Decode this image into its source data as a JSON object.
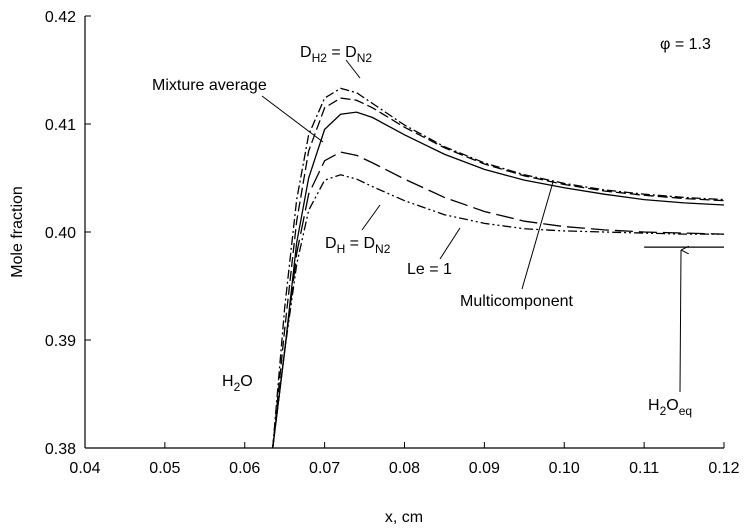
{
  "chart_data": {
    "type": "line",
    "xlabel": "x, cm",
    "ylabel": "Mole fraction",
    "xlim": [
      0.04,
      0.12
    ],
    "ylim": [
      0.38,
      0.42
    ],
    "xticks": [
      0.04,
      0.05,
      0.06,
      0.07,
      0.08,
      0.09,
      {
        "value": 0.1,
        "label": "0.10"
      },
      0.11,
      0.12
    ],
    "yticks": [
      0.38,
      0.39,
      {
        "value": 0.4,
        "label": "0.40"
      },
      0.41,
      0.42
    ],
    "x": [
      0.0635,
      0.065,
      0.0665,
      0.068,
      0.07,
      0.072,
      0.074,
      0.076,
      0.08,
      0.085,
      0.09,
      0.095,
      0.1,
      0.105,
      0.11,
      0.115,
      0.12
    ],
    "series": [
      {
        "color": "#000000",
        "dash": "solid",
        "values": [
          0.38,
          0.389,
          0.399,
          0.405,
          0.4095,
          0.4109,
          0.4111,
          0.4106,
          0.409,
          0.4072,
          0.4058,
          0.4048,
          0.4041,
          0.4035,
          0.403,
          0.4027,
          0.4025
        ]
      },
      {
        "color": "#000000",
        "dash": "dashed",
        "values": [
          0.38,
          0.391,
          0.401,
          0.4075,
          0.4115,
          0.4124,
          0.4122,
          0.4115,
          0.4097,
          0.4078,
          0.4063,
          0.4052,
          0.4044,
          0.4038,
          0.4034,
          0.4031,
          0.4029
        ]
      },
      {
        "color": "#000000",
        "dash": "dash-dot",
        "values": [
          0.38,
          0.393,
          0.403,
          0.409,
          0.4124,
          0.4133,
          0.4129,
          0.4119,
          0.4099,
          0.4079,
          0.4064,
          0.4053,
          0.4045,
          0.4039,
          0.4035,
          0.4032,
          0.403
        ]
      },
      {
        "color": "#000000",
        "dash": "dash-dot-dot",
        "values": [
          0.38,
          0.389,
          0.397,
          0.402,
          0.4048,
          0.4053,
          0.4049,
          0.4042,
          0.4029,
          0.4016,
          0.4008,
          0.4003,
          0.4001,
          0.4,
          0.3999,
          0.3998,
          0.3998
        ]
      },
      {
        "color": "#000000",
        "dash": "long-dash",
        "values": [
          0.38,
          0.389,
          0.398,
          0.4035,
          0.4066,
          0.4074,
          0.4071,
          0.4064,
          0.4049,
          0.4032,
          0.4019,
          0.401,
          0.4005,
          0.4002,
          0.4,
          0.3999,
          0.3998
        ]
      }
    ],
    "reference": {
      "y": 0.3986,
      "x": [
        0.11,
        0.12
      ]
    },
    "annotations": [
      {
        "parts": [
          {
            "text": "φ = 1.3"
          }
        ]
      },
      {
        "parts": [
          {
            "text": "D"
          },
          {
            "sub": "H2"
          },
          {
            "text": " = D"
          },
          {
            "sub": "N2"
          }
        ]
      },
      {
        "parts": [
          {
            "text": "Mixture average"
          }
        ]
      },
      {
        "parts": [
          {
            "text": "D"
          },
          {
            "sub": "H"
          },
          {
            "text": " = D"
          },
          {
            "sub": "N2"
          }
        ]
      },
      {
        "parts": [
          {
            "text": "Le = 1"
          }
        ]
      },
      {
        "parts": [
          {
            "text": "Multicomponent"
          }
        ]
      },
      {
        "parts": [
          {
            "text": "H"
          },
          {
            "sub": "2"
          },
          {
            "text": "O"
          }
        ]
      },
      {
        "parts": [
          {
            "text": "H"
          },
          {
            "sub": "2"
          },
          {
            "text": "O"
          },
          {
            "sub": "eq"
          }
        ]
      }
    ]
  }
}
